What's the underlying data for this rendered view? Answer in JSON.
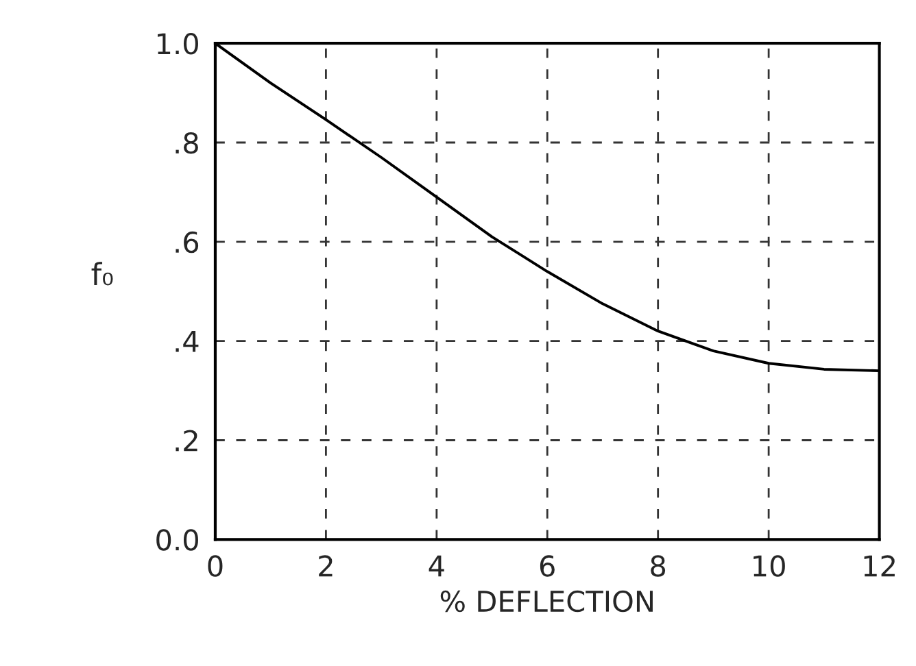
{
  "chart_data": {
    "type": "line",
    "xlabel": "% DEFLECTION",
    "ylabel": "f₀",
    "x": [
      0,
      1,
      2,
      3,
      4,
      5,
      6,
      7,
      8,
      9,
      10,
      11,
      12
    ],
    "series": [
      {
        "color": "#000000",
        "values": [
          1.0,
          0.92,
          0.846,
          0.77,
          0.69,
          0.61,
          0.54,
          0.475,
          0.42,
          0.38,
          0.355,
          0.343,
          0.34
        ]
      }
    ],
    "xlim": [
      0,
      12
    ],
    "xticks": [
      0,
      2,
      4,
      6,
      8,
      10,
      12
    ],
    "ylim": [
      0,
      1
    ],
    "yticks": [
      {
        "value": 0,
        "label": "0.0"
      },
      {
        "value": 0.2,
        "label": ".2"
      },
      {
        "value": 0.4,
        "label": ".4"
      },
      {
        "value": 0.6,
        "label": ".6"
      },
      {
        "value": 0.8,
        "label": ".8"
      },
      {
        "value": 1,
        "label": "1.0"
      }
    ],
    "grid": true,
    "marker": "none",
    "line_style": "solid"
  }
}
